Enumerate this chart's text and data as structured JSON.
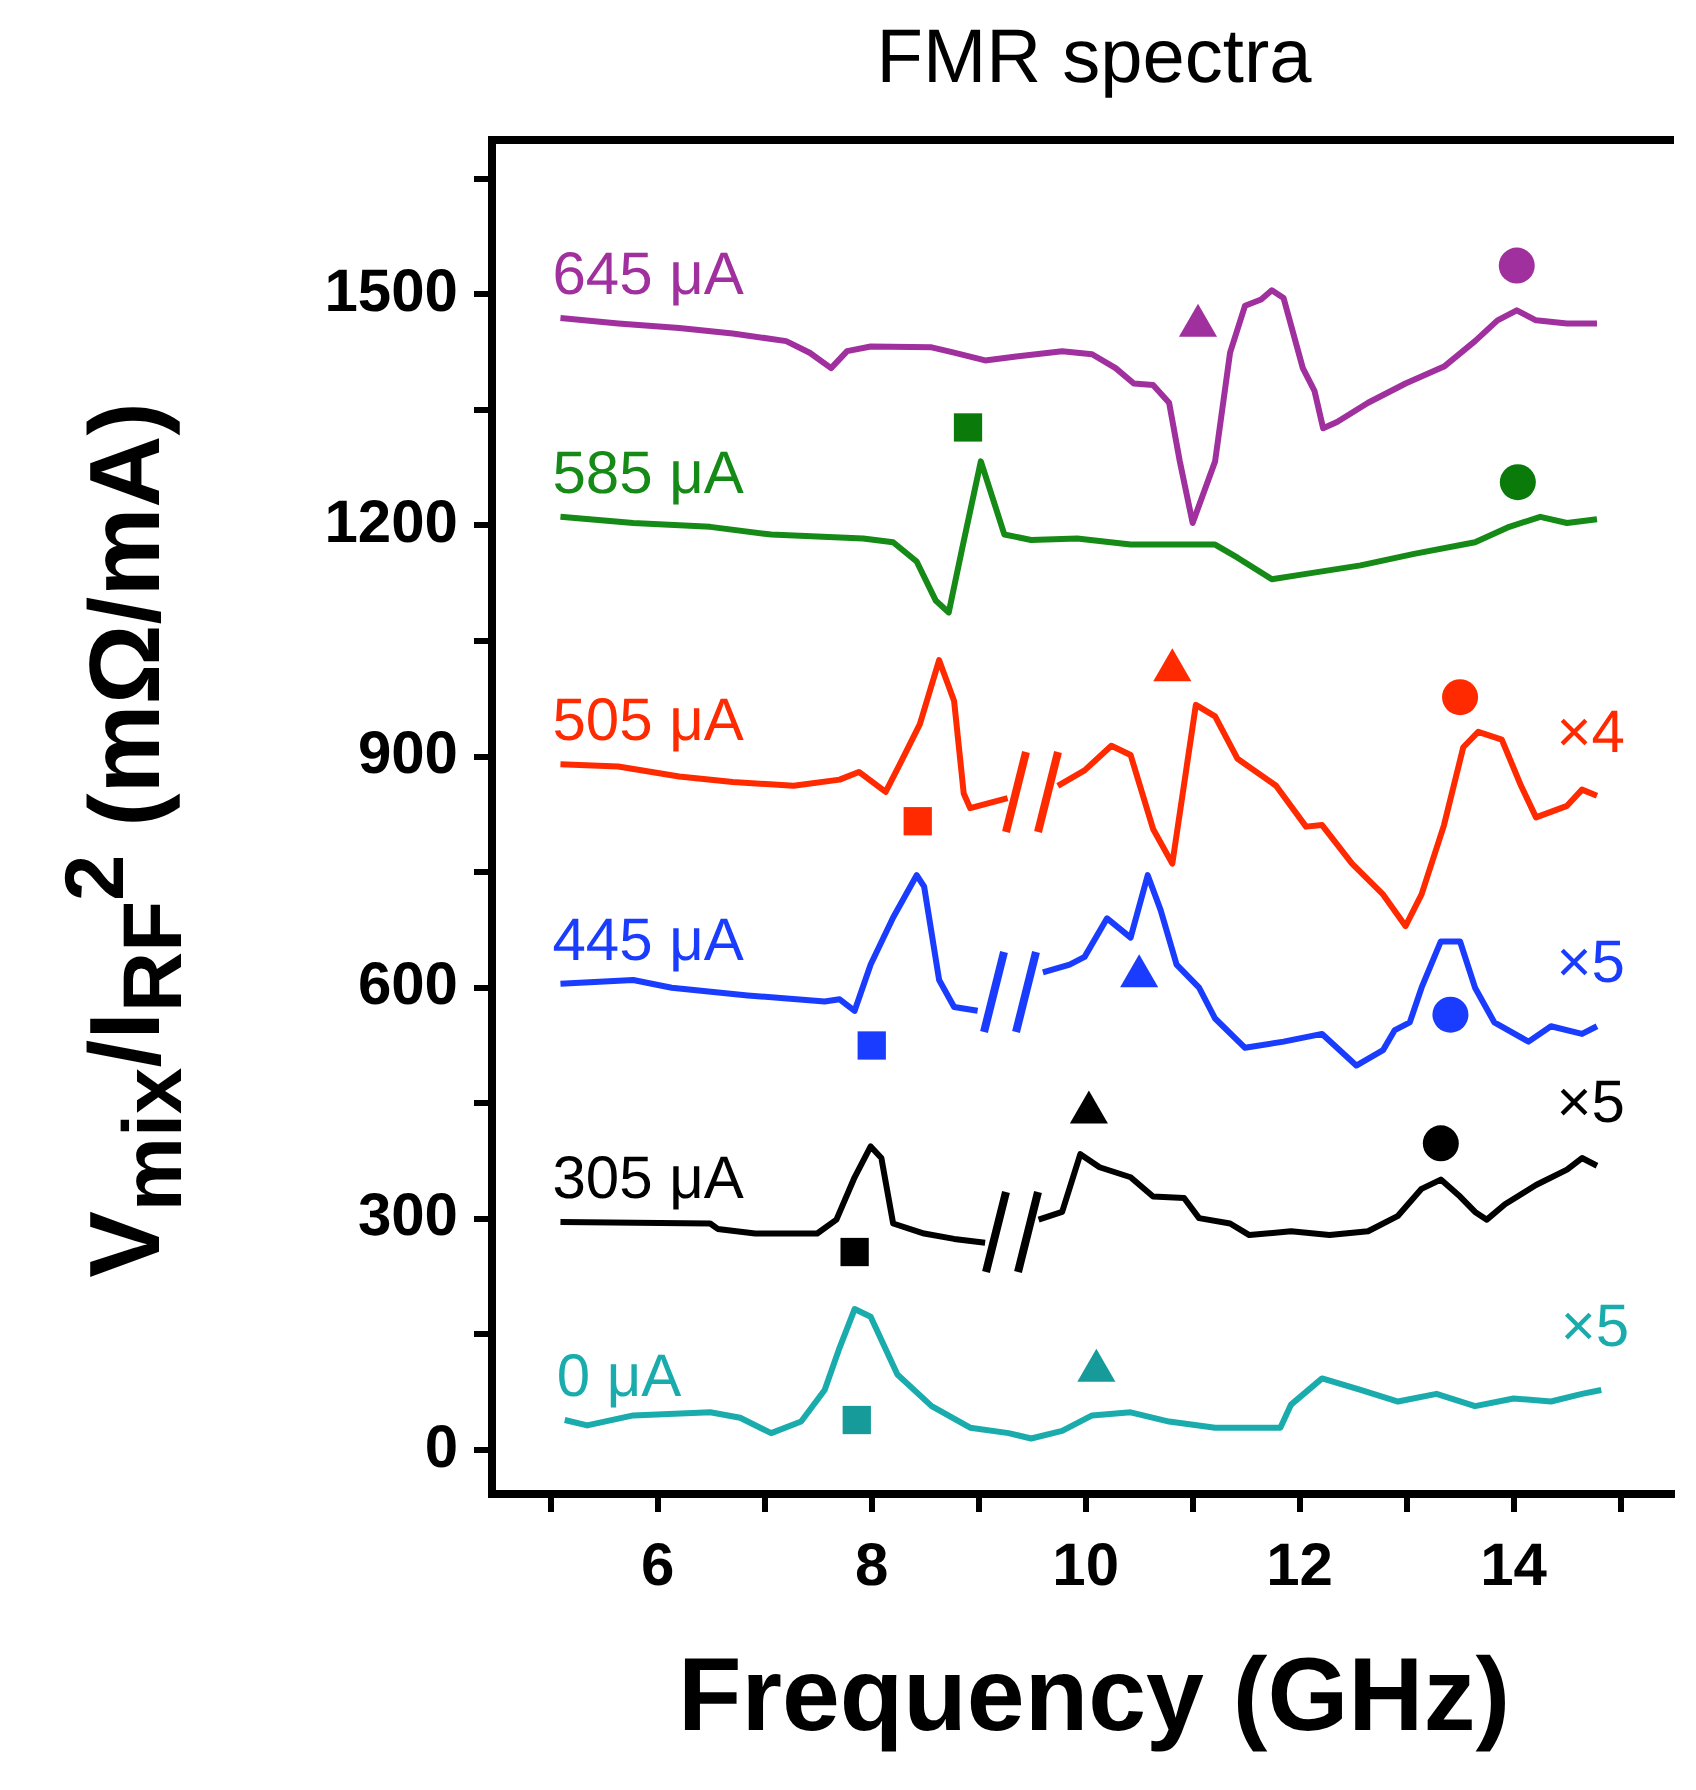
{
  "chart_data": {
    "type": "line",
    "title": "FMR spectra",
    "xlabel": "Frequency (GHz)",
    "ylabel": "V$_{mix}$/I$_{RF}$$^{2}$ (mΩ/mA)",
    "xlim": [
      4.45,
      15.5
    ],
    "xticks": [
      {
        "value": 5,
        "label": null
      },
      6,
      {
        "value": 7,
        "label": null
      },
      8,
      {
        "value": 9,
        "label": null
      },
      10,
      {
        "value": 11,
        "label": null
      },
      12,
      {
        "value": 13,
        "label": null
      },
      14,
      {
        "value": 15,
        "label": null
      }
    ],
    "ylim": [
      -57,
      1700
    ],
    "yticks": [
      0,
      {
        "value": 150,
        "label": null
      },
      300,
      {
        "value": 450,
        "label": null
      },
      600,
      {
        "value": 750,
        "label": null
      },
      900,
      {
        "value": 1050,
        "label": null
      },
      1200,
      {
        "value": 1350,
        "label": null
      },
      1500,
      {
        "value": 1650,
        "label": null
      }
    ],
    "grid": false,
    "legend": false,
    "annotations": [
      "×4",
      "×5",
      "×5",
      "×5"
    ],
    "series": [
      {
        "name": "645 μA",
        "color": "#a0309e",
        "marker": "none",
        "x": [
          5.09,
          5.63,
          6.2,
          6.7,
          7.2,
          7.42,
          7.62,
          7.77,
          7.99,
          8.56,
          8.77,
          9.06,
          9.35,
          9.78,
          10.06,
          10.28,
          10.45,
          10.63,
          10.78,
          10.88,
          11.0,
          11.21,
          11.35,
          11.49,
          11.64,
          11.74,
          11.85,
          12.03,
          12.14,
          12.22,
          12.35,
          12.64,
          12.99,
          13.35,
          13.64,
          13.85,
          14.03,
          14.21,
          14.5,
          14.78
        ],
        "values": [
          1469,
          1462,
          1456,
          1449,
          1439,
          1424,
          1404,
          1426,
          1432,
          1431,
          1424,
          1414,
          1419,
          1426,
          1422,
          1404,
          1384,
          1382,
          1359,
          1283,
          1203,
          1283,
          1424,
          1485,
          1493,
          1505,
          1495,
          1404,
          1374,
          1326,
          1334,
          1359,
          1384,
          1406,
          1439,
          1466,
          1479,
          1466,
          1462,
          1462
        ]
      },
      {
        "name": "585 μA",
        "color": "#168a16",
        "marker": "none",
        "x": [
          5.09,
          5.77,
          6.49,
          7.06,
          7.92,
          8.2,
          8.42,
          8.6,
          8.72,
          8.85,
          9.02,
          9.24,
          9.49,
          9.92,
          10.42,
          11.21,
          11.42,
          11.74,
          12.06,
          12.57,
          13.07,
          13.64,
          13.96,
          14.25,
          14.5,
          14.78
        ],
        "values": [
          1211,
          1203,
          1198,
          1188,
          1183,
          1178,
          1153,
          1102,
          1087,
          1173,
          1283,
          1188,
          1181,
          1183,
          1175,
          1175,
          1158,
          1130,
          1137,
          1148,
          1163,
          1178,
          1198,
          1211,
          1203,
          1208
        ]
      },
      {
        "name": "505 μA",
        "color": "#ff2a00",
        "marker": "none",
        "x": [
          5.09,
          5.63,
          6.2,
          6.7,
          7.27,
          7.7,
          7.88,
          8.13,
          8.27,
          8.45,
          8.63,
          8.77,
          8.86,
          8.92,
          9.27,
          9.5,
          9.74,
          9.99,
          10.24,
          10.42,
          10.63,
          10.81,
          11.03,
          11.21,
          11.42,
          11.78,
          12.06,
          12.21,
          12.49,
          12.78,
          12.99,
          13.14,
          13.35,
          13.53,
          13.67,
          13.89,
          14.07,
          14.21,
          14.5,
          14.64,
          14.78
        ],
        "values": [
          890,
          887,
          874,
          867,
          862,
          870,
          880,
          854,
          892,
          942,
          1025,
          972,
          852,
          833,
          846,
          null,
          862,
          882,
          914,
          902,
          806,
          761,
          967,
          952,
          897,
          862,
          809,
          811,
          761,
          721,
          680,
          721,
          811,
          912,
          932,
          922,
          862,
          821,
          836,
          857,
          849
        ]
      },
      {
        "name": "445 μA",
        "color": "#1a3cff",
        "marker": "none",
        "x": [
          5.09,
          5.77,
          6.13,
          6.84,
          7.56,
          7.7,
          7.84,
          7.99,
          8.2,
          8.42,
          8.49,
          8.63,
          8.77,
          8.99,
          9.3,
          9.6,
          9.85,
          9.99,
          10.2,
          10.42,
          10.58,
          10.7,
          10.85,
          11.06,
          11.21,
          11.49,
          11.85,
          12.21,
          12.53,
          12.78,
          12.89,
          13.03,
          13.14,
          13.32,
          13.5,
          13.64,
          13.82,
          14.14,
          14.35,
          14.64,
          14.78
        ],
        "values": [
          605,
          610,
          600,
          590,
          582,
          585,
          570,
          630,
          691,
          746,
          731,
          610,
          575,
          570,
          null,
          620,
          630,
          640,
          690,
          665,
          746,
          701,
          630,
          600,
          560,
          522,
          530,
          540,
          499,
          519,
          545,
          555,
          600,
          660,
          660,
          600,
          555,
          530,
          550,
          540,
          550
        ]
      },
      {
        "name": "305 μA",
        "color": "#000000",
        "marker": "none",
        "x": [
          5.09,
          6.49,
          6.56,
          6.91,
          7.49,
          7.67,
          7.84,
          7.99,
          8.09,
          8.2,
          8.49,
          8.77,
          9.06,
          9.3,
          9.56,
          9.78,
          9.95,
          10.13,
          10.42,
          10.63,
          10.92,
          11.06,
          11.35,
          11.53,
          11.92,
          12.28,
          12.64,
          12.92,
          13.14,
          13.32,
          13.5,
          13.64,
          13.75,
          13.92,
          14.21,
          14.5,
          14.64,
          14.78
        ],
        "values": [
          296,
          294,
          287,
          281,
          281,
          299,
          354,
          394,
          379,
          294,
          281,
          274,
          269,
          null,
          299,
          309,
          384,
          367,
          354,
          329,
          327,
          301,
          294,
          279,
          284,
          279,
          284,
          304,
          339,
          351,
          329,
          309,
          299,
          319,
          344,
          364,
          379,
          369
        ]
      },
      {
        "name": "0 μA",
        "color": "#1aacac",
        "marker": "none",
        "x": [
          5.13,
          5.34,
          5.77,
          6.49,
          6.77,
          7.06,
          7.34,
          7.56,
          7.7,
          7.84,
          7.99,
          8.24,
          8.56,
          8.92,
          9.28,
          9.49,
          9.78,
          10.06,
          10.42,
          10.78,
          11.21,
          11.49,
          11.82,
          11.92,
          12.21,
          12.57,
          12.92,
          13.28,
          13.64,
          14.0,
          14.35,
          14.64,
          14.82
        ],
        "values": [
          39,
          32,
          45,
          49,
          42,
          22,
          37,
          78,
          133,
          183,
          173,
          98,
          57,
          29,
          22,
          15,
          25,
          45,
          49,
          37,
          29,
          29,
          29,
          59,
          93,
          78,
          63,
          73,
          57,
          67,
          63,
          73,
          78
        ]
      },
      {
        "type": "scatter",
        "color": "#a0309e",
        "marker": "triangle",
        "x": [
          11.05
        ],
        "values": [
          1459
        ]
      },
      {
        "type": "scatter",
        "color": "#a0309e",
        "marker": "circle",
        "x": [
          14.03
        ],
        "values": [
          1537
        ]
      },
      {
        "type": "scatter",
        "color": "#0a7a0a",
        "marker": "square",
        "x": [
          8.9
        ],
        "values": [
          1327
        ]
      },
      {
        "type": "scatter",
        "color": "#0a7a0a",
        "marker": "circle",
        "x": [
          14.04
        ],
        "values": [
          1256
        ]
      },
      {
        "type": "scatter",
        "color": "#ff2a00",
        "marker": "square",
        "x": [
          8.43
        ],
        "values": [
          816
        ]
      },
      {
        "type": "scatter",
        "color": "#ff2a00",
        "marker": "triangle",
        "x": [
          10.81
        ],
        "values": [
          1012
        ]
      },
      {
        "type": "scatter",
        "color": "#ff2a00",
        "marker": "circle",
        "x": [
          13.5
        ],
        "values": [
          977
        ]
      },
      {
        "type": "scatter",
        "color": "#1a3cff",
        "marker": "square",
        "x": [
          8.0
        ],
        "values": [
          525
        ]
      },
      {
        "type": "scatter",
        "color": "#1a3cff",
        "marker": "triangle",
        "x": [
          10.5
        ],
        "values": [
          615
        ]
      },
      {
        "type": "scatter",
        "color": "#1a3cff",
        "marker": "circle",
        "x": [
          13.41
        ],
        "values": [
          565
        ]
      },
      {
        "type": "scatter",
        "color": "#000000",
        "marker": "square",
        "x": [
          7.84
        ],
        "values": [
          257
        ]
      },
      {
        "type": "scatter",
        "color": "#000000",
        "marker": "triangle",
        "x": [
          10.03
        ],
        "values": [
          438
        ]
      },
      {
        "type": "scatter",
        "color": "#000000",
        "marker": "circle",
        "x": [
          13.32
        ],
        "values": [
          398
        ]
      },
      {
        "type": "scatter",
        "color": "#169a9a",
        "marker": "square",
        "x": [
          7.86
        ],
        "values": [
          39
        ]
      },
      {
        "type": "scatter",
        "color": "#169a9a",
        "marker": "triangle",
        "x": [
          10.1
        ],
        "values": [
          103
        ]
      }
    ]
  }
}
